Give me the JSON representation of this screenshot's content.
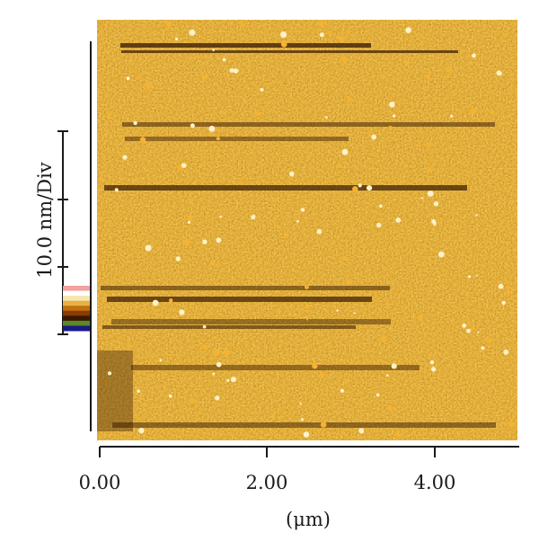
{
  "figure": {
    "scale_bar_label": "10.0 nm/Div",
    "x_axis": {
      "ticks": [
        "0.00",
        "2.00",
        "4.00"
      ],
      "title": "(μm)"
    },
    "colormap": [
      "#f2a0a0",
      "#ffffff",
      "#f5e6b0",
      "#e8b040",
      "#c07010",
      "#8a3c00",
      "#3a1800",
      "#5a8a2a",
      "#1a1a8a"
    ],
    "image_colors": {
      "dark": "#2a0e00",
      "mid": "#c77008",
      "bright": "#f5b332",
      "highlight": "#fff1c8"
    }
  }
}
